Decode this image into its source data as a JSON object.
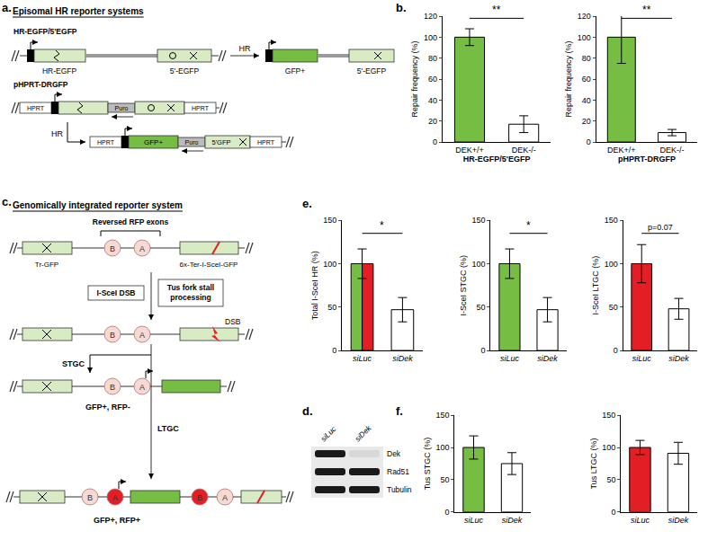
{
  "chart_data": [
    {
      "type": "bar",
      "ylabel": "Repair frequency (%)",
      "xlabel": "HR-EGFP/5'EGFP",
      "categories": [
        "DEK+/+",
        "DEK-/-"
      ],
      "values": [
        100,
        17
      ],
      "errors": [
        8,
        8
      ],
      "colors": [
        "#76bd43",
        "#ffffff"
      ],
      "ylim": [
        0,
        120
      ],
      "yticks": [
        0,
        20,
        40,
        60,
        80,
        100,
        120
      ],
      "annotations": [
        {
          "text": "**",
          "y": 118
        }
      ]
    },
    {
      "type": "bar",
      "ylabel": "Repair frequency (%)",
      "xlabel": "pHPRT-DRGFP",
      "categories": [
        "DEK+/+",
        "DEK-/-"
      ],
      "values": [
        100,
        9
      ],
      "errors": [
        25,
        3
      ],
      "colors": [
        "#76bd43",
        "#ffffff"
      ],
      "ylim": [
        0,
        120
      ],
      "yticks": [
        0,
        20,
        40,
        60,
        80,
        100,
        120
      ],
      "annotations": [
        {
          "text": "**",
          "y": 118
        }
      ]
    },
    {
      "type": "bar",
      "ylabel": "Total I-SceI HR (%)",
      "categories": [
        "siLuc",
        "siDek"
      ],
      "values": [
        100,
        47
      ],
      "errors": [
        17,
        14
      ],
      "colors": [
        [
          "#76bd43",
          "#e31e24"
        ],
        "#ffffff"
      ],
      "ylim": [
        0,
        150
      ],
      "yticks": [
        0,
        50,
        100,
        150
      ],
      "annotations": [
        {
          "text": "*",
          "y": 135
        }
      ]
    },
    {
      "type": "bar",
      "ylabel": "I-SceI STGC (%)",
      "categories": [
        "siLuc",
        "siDek"
      ],
      "values": [
        100,
        47
      ],
      "errors": [
        17,
        14
      ],
      "colors": [
        "#76bd43",
        "#ffffff"
      ],
      "ylim": [
        0,
        150
      ],
      "yticks": [
        0,
        50,
        100,
        150
      ],
      "annotations": [
        {
          "text": "*",
          "y": 135
        }
      ]
    },
    {
      "type": "bar",
      "ylabel": "I-SceI LTGC (%)",
      "categories": [
        "siLuc",
        "siDek"
      ],
      "values": [
        100,
        48
      ],
      "errors": [
        22,
        12
      ],
      "colors": [
        "#e31e24",
        "#ffffff"
      ],
      "ylim": [
        0,
        150
      ],
      "yticks": [
        0,
        50,
        100,
        150
      ],
      "annotations": [
        {
          "text": "p=0.07",
          "y": 135
        }
      ]
    },
    {
      "type": "bar",
      "ylabel": "Tus STGC (%)",
      "categories": [
        "siLuc",
        "siDek"
      ],
      "values": [
        100,
        75
      ],
      "errors": [
        18,
        17
      ],
      "colors": [
        "#76bd43",
        "#ffffff"
      ],
      "ylim": [
        0,
        150
      ],
      "yticks": [
        0,
        50,
        100,
        150
      ]
    },
    {
      "type": "bar",
      "ylabel": "Tus LTGC (%)",
      "categories": [
        "siLuc",
        "siDek"
      ],
      "values": [
        100,
        91
      ],
      "errors": [
        11,
        17
      ],
      "colors": [
        "#e31e24",
        "#ffffff"
      ],
      "ylim": [
        0,
        150
      ],
      "yticks": [
        0,
        50,
        100,
        150
      ]
    }
  ],
  "figure": {
    "panel_labels": [
      "a.",
      "b.",
      "c.",
      "d.",
      "e.",
      "f."
    ],
    "diagram_a": {
      "title": "Episomal HR reporter systems",
      "reporter1": {
        "name": "HR-EGFP/5'EGFP",
        "parts": [
          "HR-EGFP",
          "5'-EGFP"
        ],
        "arrow": "HR",
        "product": [
          "GFP+",
          "5'-EGFP"
        ]
      },
      "reporter2": {
        "name": "pHPRT-DRGFP",
        "flank": "HPRT",
        "selection": "Puro",
        "arrow": "HR",
        "product": [
          "GFP+",
          "5'GFP"
        ]
      }
    },
    "diagram_c": {
      "title": "Genomically integrated reporter system",
      "bracket": "Reversed RFP exons",
      "exons": [
        "B",
        "A"
      ],
      "left": "Tr-GFP",
      "right": "6x-Ter-I-SceI-GFP",
      "steps": [
        [
          "I-SceI DSB"
        ],
        [
          "Tus fork stall",
          "processing"
        ]
      ],
      "break": "DSB",
      "branches": [
        {
          "name": "STGC",
          "outcome": "GFP+, RFP-"
        },
        {
          "name": "LTGC",
          "outcome": "GFP+, RFP+"
        }
      ]
    },
    "blot_d": {
      "lanes": [
        "siLuc",
        "siDek"
      ],
      "rows": [
        "Dek",
        "Rad51",
        "Tubulin"
      ],
      "intensities": [
        [
          1,
          0.08
        ],
        [
          1,
          1
        ],
        [
          1,
          1
        ]
      ]
    }
  }
}
